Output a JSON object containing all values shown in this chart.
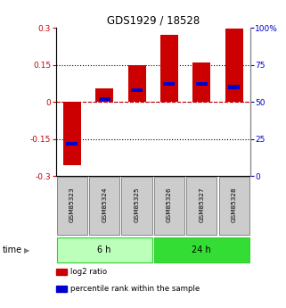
{
  "title": "GDS1929 / 18528",
  "samples": [
    "GSM85323",
    "GSM85324",
    "GSM85325",
    "GSM85326",
    "GSM85327",
    "GSM85328"
  ],
  "log2_ratio": [
    -0.255,
    0.055,
    0.15,
    0.27,
    0.16,
    0.295
  ],
  "percentile_rank": [
    22,
    52,
    58,
    62,
    62,
    60
  ],
  "ylim_left": [
    -0.3,
    0.3
  ],
  "ylim_right": [
    0,
    100
  ],
  "yticks_left": [
    -0.3,
    -0.15,
    0,
    0.15,
    0.3
  ],
  "yticks_right": [
    0,
    25,
    50,
    75,
    100
  ],
  "ytick_labels_left": [
    "-0.3",
    "-0.15",
    "0",
    "0.15",
    "0.3"
  ],
  "ytick_labels_right": [
    "0",
    "25",
    "50",
    "75",
    "100%"
  ],
  "bar_color": "#cc0000",
  "percentile_color": "#0000cc",
  "bar_width": 0.55,
  "groups": [
    {
      "label": "6 h",
      "samples": [
        0,
        1,
        2
      ],
      "color": "#bbffbb",
      "border": "#33cc33"
    },
    {
      "label": "24 h",
      "samples": [
        3,
        4,
        5
      ],
      "color": "#33dd33",
      "border": "#33cc33"
    }
  ],
  "time_label": "time",
  "legend_items": [
    {
      "label": "log2 ratio",
      "color": "#cc0000"
    },
    {
      "label": "percentile rank within the sample",
      "color": "#0000cc"
    }
  ],
  "background_color": "#ffffff",
  "sample_box_color": "#cccccc",
  "sample_box_border": "#888888",
  "dotted_hlines": [
    0.15,
    -0.15
  ],
  "red_dashed_hline": 0.0,
  "black_dotted_hline": 0.0
}
